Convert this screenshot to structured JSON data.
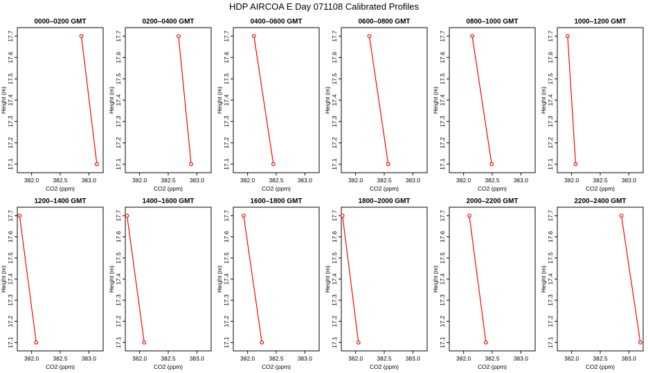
{
  "figure": {
    "title": "HDP AIRCOA E  Day 071108  Calibrated Profiles"
  },
  "colors": {
    "series": "#ff0000",
    "axis": "#000000",
    "background": "#ffffff"
  },
  "chart_data": [
    {
      "type": "line",
      "title": "0000–0200 GMT",
      "xlabel": "CO2 (ppm)",
      "ylabel": "Height (m)",
      "xlim": [
        381.75,
        383.25
      ],
      "ylim": [
        17.06,
        17.74
      ],
      "xticks": [
        "382.0",
        "382.5",
        "383.0"
      ],
      "yticks": [
        "17.1",
        "17.2",
        "17.3",
        "17.4",
        "17.5",
        "17.6",
        "17.7"
      ],
      "grid": false,
      "series": [
        {
          "marker": "open-circle",
          "points": [
            {
              "x": 382.87,
              "y": 17.7
            },
            {
              "x": 383.14,
              "y": 17.1
            }
          ]
        }
      ]
    },
    {
      "type": "line",
      "title": "0200–0400 GMT",
      "xlabel": "CO2 (ppm)",
      "ylabel": "Height (m)",
      "xlim": [
        381.75,
        383.25
      ],
      "ylim": [
        17.06,
        17.74
      ],
      "xticks": [
        "382.0",
        "382.5",
        "383.0"
      ],
      "yticks": [
        "17.1",
        "17.2",
        "17.3",
        "17.4",
        "17.5",
        "17.6",
        "17.7"
      ],
      "grid": false,
      "series": [
        {
          "marker": "open-circle",
          "points": [
            {
              "x": 382.68,
              "y": 17.7
            },
            {
              "x": 382.9,
              "y": 17.1
            }
          ]
        }
      ]
    },
    {
      "type": "line",
      "title": "0400–0600 GMT",
      "xlabel": "CO2 (ppm)",
      "ylabel": "Height (m)",
      "xlim": [
        381.75,
        383.25
      ],
      "ylim": [
        17.06,
        17.74
      ],
      "xticks": [
        "382.0",
        "382.5",
        "383.0"
      ],
      "yticks": [
        "17.1",
        "17.2",
        "17.3",
        "17.4",
        "17.5",
        "17.6",
        "17.7"
      ],
      "grid": false,
      "series": [
        {
          "marker": "open-circle",
          "points": [
            {
              "x": 382.11,
              "y": 17.7
            },
            {
              "x": 382.45,
              "y": 17.1
            }
          ]
        }
      ]
    },
    {
      "type": "line",
      "title": "0600–0800 GMT",
      "xlabel": "CO2 (ppm)",
      "ylabel": "Height (m)",
      "xlim": [
        381.75,
        383.25
      ],
      "ylim": [
        17.06,
        17.74
      ],
      "xticks": [
        "382.0",
        "382.5",
        "383.0"
      ],
      "yticks": [
        "17.1",
        "17.2",
        "17.3",
        "17.4",
        "17.5",
        "17.6",
        "17.7"
      ],
      "grid": false,
      "series": [
        {
          "marker": "open-circle",
          "points": [
            {
              "x": 382.24,
              "y": 17.7
            },
            {
              "x": 382.57,
              "y": 17.1
            }
          ]
        }
      ]
    },
    {
      "type": "line",
      "title": "0800–1000 GMT",
      "xlabel": "CO2 (ppm)",
      "ylabel": "Height (m)",
      "xlim": [
        381.75,
        383.25
      ],
      "ylim": [
        17.06,
        17.74
      ],
      "xticks": [
        "382.0",
        "382.5",
        "383.0"
      ],
      "yticks": [
        "17.1",
        "17.2",
        "17.3",
        "17.4",
        "17.5",
        "17.6",
        "17.7"
      ],
      "grid": false,
      "series": [
        {
          "marker": "open-circle",
          "points": [
            {
              "x": 382.15,
              "y": 17.7
            },
            {
              "x": 382.49,
              "y": 17.1
            }
          ]
        }
      ]
    },
    {
      "type": "line",
      "title": "1000–1200 GMT",
      "xlabel": "CO2 (ppm)",
      "ylabel": "Height (m)",
      "xlim": [
        381.75,
        383.25
      ],
      "ylim": [
        17.06,
        17.74
      ],
      "xticks": [
        "382.0",
        "382.5",
        "383.0"
      ],
      "yticks": [
        "17.1",
        "17.2",
        "17.3",
        "17.4",
        "17.5",
        "17.6",
        "17.7"
      ],
      "grid": false,
      "series": [
        {
          "marker": "open-circle",
          "points": [
            {
              "x": 381.93,
              "y": 17.7
            },
            {
              "x": 382.07,
              "y": 17.1
            }
          ]
        }
      ]
    },
    {
      "type": "line",
      "title": "1200–1400 GMT",
      "xlabel": "CO2 (ppm)",
      "ylabel": "Height (m)",
      "xlim": [
        381.75,
        383.25
      ],
      "ylim": [
        17.06,
        17.74
      ],
      "xticks": [
        "382.0",
        "382.5",
        "383.0"
      ],
      "yticks": [
        "17.1",
        "17.2",
        "17.3",
        "17.4",
        "17.5",
        "17.6",
        "17.7"
      ],
      "grid": false,
      "series": [
        {
          "marker": "open-circle",
          "points": [
            {
              "x": 381.79,
              "y": 17.7
            },
            {
              "x": 382.08,
              "y": 17.1
            }
          ]
        }
      ]
    },
    {
      "type": "line",
      "title": "1400–1600 GMT",
      "xlabel": "CO2 (ppm)",
      "ylabel": "Height (m)",
      "xlim": [
        381.75,
        383.25
      ],
      "ylim": [
        17.06,
        17.74
      ],
      "xticks": [
        "382.0",
        "382.5",
        "383.0"
      ],
      "yticks": [
        "17.1",
        "17.2",
        "17.3",
        "17.4",
        "17.5",
        "17.6",
        "17.7"
      ],
      "grid": false,
      "series": [
        {
          "marker": "open-circle",
          "points": [
            {
              "x": 381.78,
              "y": 17.7
            },
            {
              "x": 382.08,
              "y": 17.1
            }
          ]
        }
      ]
    },
    {
      "type": "line",
      "title": "1600–1800 GMT",
      "xlabel": "CO2 (ppm)",
      "ylabel": "Height (m)",
      "xlim": [
        381.75,
        383.25
      ],
      "ylim": [
        17.06,
        17.74
      ],
      "xticks": [
        "382.0",
        "382.5",
        "383.0"
      ],
      "yticks": [
        "17.1",
        "17.2",
        "17.3",
        "17.4",
        "17.5",
        "17.6",
        "17.7"
      ],
      "grid": false,
      "series": [
        {
          "marker": "open-circle",
          "points": [
            {
              "x": 381.93,
              "y": 17.7
            },
            {
              "x": 382.25,
              "y": 17.1
            }
          ]
        }
      ]
    },
    {
      "type": "line",
      "title": "1800–2000 GMT",
      "xlabel": "CO2 (ppm)",
      "ylabel": "Height (m)",
      "xlim": [
        381.75,
        383.25
      ],
      "ylim": [
        17.06,
        17.74
      ],
      "xticks": [
        "382.0",
        "382.5",
        "383.0"
      ],
      "yticks": [
        "17.1",
        "17.2",
        "17.3",
        "17.4",
        "17.5",
        "17.6",
        "17.7"
      ],
      "grid": false,
      "series": [
        {
          "marker": "open-circle",
          "points": [
            {
              "x": 381.77,
              "y": 17.7
            },
            {
              "x": 382.05,
              "y": 17.1
            }
          ]
        }
      ]
    },
    {
      "type": "line",
      "title": "2000–2200 GMT",
      "xlabel": "CO2 (ppm)",
      "ylabel": "Height (m)",
      "xlim": [
        381.75,
        383.25
      ],
      "ylim": [
        17.06,
        17.74
      ],
      "xticks": [
        "382.0",
        "382.5",
        "383.0"
      ],
      "yticks": [
        "17.1",
        "17.2",
        "17.3",
        "17.4",
        "17.5",
        "17.6",
        "17.7"
      ],
      "grid": false,
      "series": [
        {
          "marker": "open-circle",
          "points": [
            {
              "x": 382.1,
              "y": 17.7
            },
            {
              "x": 382.39,
              "y": 17.1
            }
          ]
        }
      ]
    },
    {
      "type": "line",
      "title": "2200–2400 GMT",
      "xlabel": "CO2 (ppm)",
      "ylabel": "Height (m)",
      "xlim": [
        381.75,
        383.25
      ],
      "ylim": [
        17.06,
        17.74
      ],
      "xticks": [
        "382.0",
        "382.5",
        "383.0"
      ],
      "yticks": [
        "17.1",
        "17.2",
        "17.3",
        "17.4",
        "17.5",
        "17.6",
        "17.7"
      ],
      "grid": false,
      "series": [
        {
          "marker": "open-circle",
          "points": [
            {
              "x": 382.87,
              "y": 17.7
            },
            {
              "x": 383.2,
              "y": 17.1
            }
          ]
        }
      ]
    }
  ]
}
